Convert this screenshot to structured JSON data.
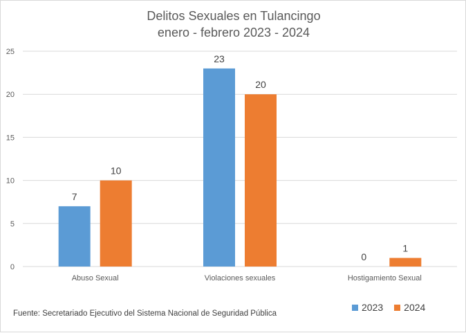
{
  "chart_data": {
    "type": "bar",
    "title": "Delitos Sexuales en Tulancingo",
    "subtitle": "enero - febrero 2023 - 2024",
    "categories": [
      "Abuso Sexual",
      "Violaciones sexuales",
      "Hostigamiento Sexual"
    ],
    "series": [
      {
        "name": "2023",
        "color": "#5b9bd5",
        "values": [
          7,
          23,
          0
        ]
      },
      {
        "name": "2024",
        "color": "#ed7d31",
        "values": [
          10,
          20,
          1
        ]
      }
    ],
    "ylim": [
      0,
      25
    ],
    "yticks": [
      0,
      5,
      10,
      15,
      20,
      25
    ],
    "grid": true,
    "legend_position": "bottom-right",
    "source_note": "Fuente:  Secretariado Ejecutivo del Sistema Nacional de Seguridad Pública"
  }
}
